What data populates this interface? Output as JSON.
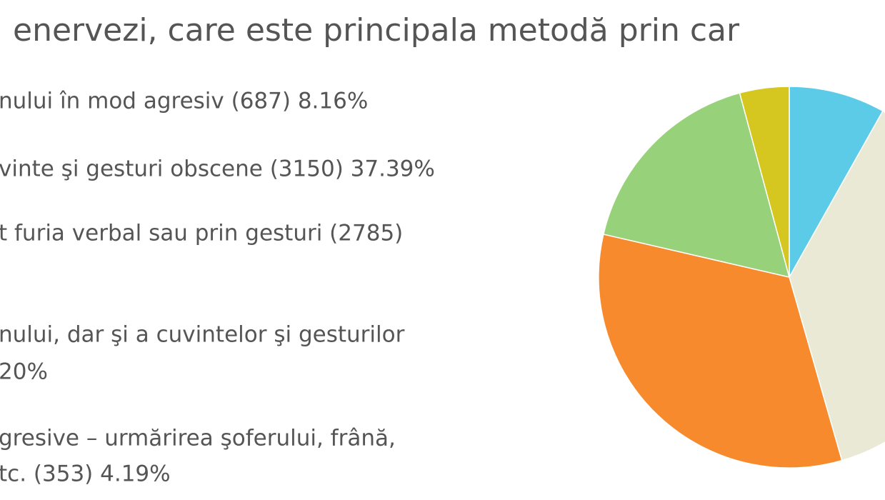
{
  "chart_data": {
    "type": "pie",
    "title": "enervezi, care este principala metodă prin car",
    "categories": [
      [
        "nului în mod agresiv (687) 8.16%"
      ],
      [
        "vinte şi gesturi obscene (3150) 37.39%"
      ],
      [
        "t furia verbal sau prin gesturi (2785)"
      ],
      [
        "nului, dar şi a cuvintelor şi gesturilor",
        "20%"
      ],
      [
        "gresive – urmărirea şoferului, frână,",
        "tc. (353) 4.19%"
      ]
    ],
    "values": [
      8.16,
      37.39,
      33.06,
      17.2,
      4.19
    ],
    "colors": [
      "#5bcbe8",
      "#e9e9d5",
      "#f68a2d",
      "#97d27b",
      "#d5c71f"
    ]
  }
}
